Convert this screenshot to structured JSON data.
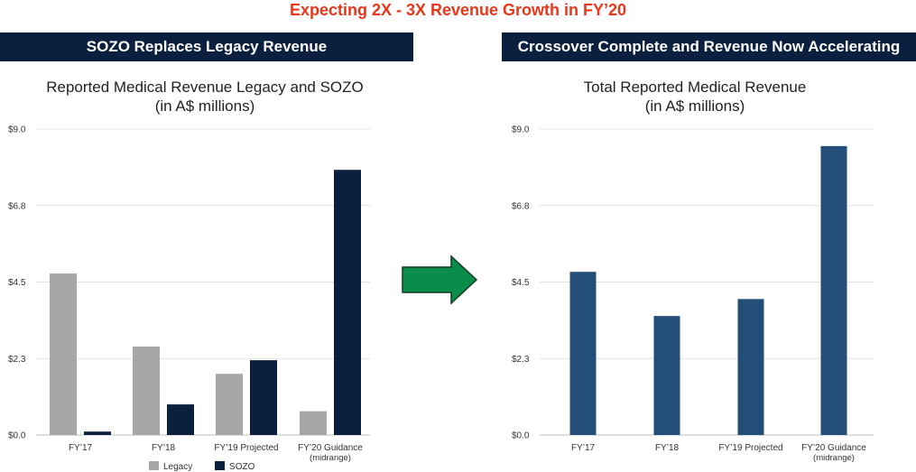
{
  "header": {
    "title": "Expecting 2X - 3X Revenue Growth in FY’20"
  },
  "left_panel": {
    "banner": "SOZO Replaces Legacy Revenue",
    "title_line1": "Reported Medical Revenue Legacy and SOZO",
    "title_line2": "(in A$ millions)"
  },
  "right_panel": {
    "banner": "Crossover Complete and Revenue Now Accelerating",
    "title_line1": "Total Reported Medical Revenue",
    "title_line2": "(in A$ millions)"
  },
  "chart_data": [
    {
      "type": "bar",
      "title": "Reported Medical Revenue Legacy and SOZO",
      "subtitle": "(in A$ millions)",
      "categories": [
        "FY’17",
        "FY’18",
        "FY’19 Projected",
        "FY’20 Guidance"
      ],
      "category_sublabels": [
        "",
        "",
        "",
        "(midrange)"
      ],
      "yticks": [
        "$0.0",
        "$2.3",
        "$4.5",
        "$6.8",
        "$9.0"
      ],
      "ylim": [
        0,
        9.0
      ],
      "grid": true,
      "legend": "bottom",
      "series": [
        {
          "name": "Legacy",
          "color": "#a6a6a6",
          "values": [
            4.75,
            2.6,
            1.8,
            0.7
          ]
        },
        {
          "name": "SOZO",
          "color": "#0b1f3f",
          "values": [
            0.1,
            0.9,
            2.2,
            7.8
          ]
        }
      ]
    },
    {
      "type": "bar",
      "title": "Total Reported Medical Revenue",
      "subtitle": "(in A$ millions)",
      "categories": [
        "FY’17",
        "FY’18",
        "FY’19 Projected",
        "FY’20 Guidance"
      ],
      "category_sublabels": [
        "",
        "",
        "",
        "(midrange)"
      ],
      "yticks": [
        "$0.0",
        "$2.3",
        "$4.5",
        "$6.8",
        "$9.0"
      ],
      "ylim": [
        0,
        9.0
      ],
      "grid": true,
      "series": [
        {
          "color": "#234e79",
          "values": [
            4.8,
            3.5,
            4.0,
            8.5
          ]
        }
      ]
    }
  ],
  "arrow_color": "#0a8c4a"
}
